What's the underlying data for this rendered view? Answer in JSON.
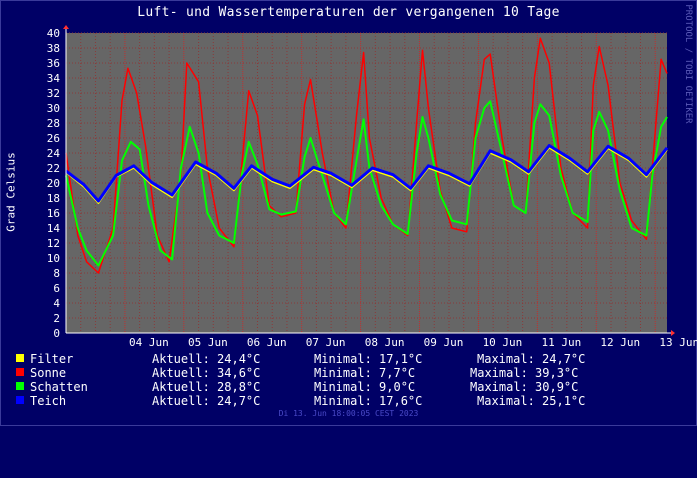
{
  "title": "Luft- und Wassertemperaturen der vergangenen 10 Tage",
  "watermark": "PROTOOL / TOBI OETIKER",
  "footer": "Di 13. Jun 18:00:05 CEST 2023",
  "colors": {
    "background": "#000066",
    "plot_bg": "#666666",
    "grid": "#8a3a3a",
    "axis": "#ffffff",
    "Filter": "#ffff00",
    "Sonne": "#ff0000",
    "Schatten": "#00ff00",
    "Teich": "#0000ff"
  },
  "legend": [
    {
      "name": "Filter",
      "current": "Aktuell: 24,4°C",
      "min": "Minimal: 17,1°C",
      "max": "Maximal: 24,7°C",
      "color": "#ffff00"
    },
    {
      "name": "Sonne",
      "current": "Aktuell: 34,6°C",
      "min": "Minimal: 7,7°C",
      "max": "Maximal: 39,3°C",
      "color": "#ff0000"
    },
    {
      "name": "Schatten",
      "current": "Aktuell: 28,8°C",
      "min": "Minimal: 9,0°C",
      "max": "Maximal: 30,9°C",
      "color": "#00ff00"
    },
    {
      "name": "Teich",
      "current": "Aktuell: 24,7°C",
      "min": "Minimal: 17,6°C",
      "max": "Maximal: 25,1°C",
      "color": "#0000ff"
    }
  ],
  "chart_data": {
    "type": "line",
    "title": "Luft- und Wassertemperaturen der vergangenen 10 Tage",
    "xlabel": "",
    "ylabel": "Grad Celsius",
    "ylim": [
      0,
      40
    ],
    "y_ticks": [
      0,
      2,
      4,
      6,
      8,
      10,
      12,
      14,
      16,
      18,
      20,
      22,
      24,
      26,
      28,
      30,
      32,
      34,
      36,
      38,
      40
    ],
    "x_range_days": [
      3.0,
      13.2
    ],
    "x_unit": "days of June 2023",
    "x_ticks": [
      {
        "day": 4,
        "label": "04 Jun"
      },
      {
        "day": 5,
        "label": "05 Jun"
      },
      {
        "day": 6,
        "label": "06 Jun"
      },
      {
        "day": 7,
        "label": "07 Jun"
      },
      {
        "day": 8,
        "label": "08 Jun"
      },
      {
        "day": 9,
        "label": "09 Jun"
      },
      {
        "day": 10,
        "label": "10 Jun"
      },
      {
        "day": 11,
        "label": "11 Jun"
      },
      {
        "day": 12,
        "label": "12 Jun"
      },
      {
        "day": 13,
        "label": "13 Jun"
      }
    ],
    "grid": true,
    "legend_position": "bottom",
    "series": [
      {
        "name": "Filter",
        "color": "#ffff00",
        "x": [
          3.0,
          3.3,
          3.55,
          3.85,
          4.15,
          4.45,
          4.8,
          5.2,
          5.55,
          5.85,
          6.15,
          6.5,
          6.8,
          7.2,
          7.5,
          7.85,
          8.2,
          8.55,
          8.85,
          9.15,
          9.5,
          9.85,
          10.2,
          10.55,
          10.85,
          11.2,
          11.55,
          11.85,
          12.2,
          12.55,
          12.85,
          13.2
        ],
        "y": [
          21.4,
          19.5,
          17.3,
          20.8,
          22.0,
          19.8,
          18.1,
          22.5,
          21.0,
          19.0,
          22.0,
          20.2,
          19.3,
          21.8,
          21.0,
          19.4,
          21.7,
          20.8,
          19.0,
          22.0,
          21.0,
          19.6,
          24.0,
          22.8,
          21.2,
          24.7,
          23.0,
          21.2,
          24.6,
          23.0,
          20.8,
          24.4
        ]
      },
      {
        "name": "Teich",
        "color": "#0000ff",
        "x": [
          3.0,
          3.3,
          3.55,
          3.85,
          4.15,
          4.45,
          4.8,
          5.2,
          5.55,
          5.85,
          6.15,
          6.5,
          6.8,
          7.2,
          7.5,
          7.85,
          8.2,
          8.55,
          8.85,
          9.15,
          9.5,
          9.85,
          10.2,
          10.55,
          10.85,
          11.2,
          11.55,
          11.85,
          12.2,
          12.55,
          12.85,
          13.2
        ],
        "y": [
          21.6,
          19.8,
          17.6,
          21.0,
          22.3,
          20.1,
          18.4,
          22.8,
          21.3,
          19.3,
          22.3,
          20.5,
          19.6,
          22.1,
          21.3,
          19.7,
          22.0,
          21.1,
          19.3,
          22.3,
          21.3,
          19.9,
          24.3,
          23.1,
          21.5,
          25.0,
          23.3,
          21.5,
          24.9,
          23.3,
          21.1,
          24.7
        ]
      },
      {
        "name": "Sonne",
        "color": "#ff0000",
        "x": [
          3.0,
          3.2,
          3.35,
          3.55,
          3.8,
          3.95,
          4.05,
          4.2,
          4.35,
          4.55,
          4.75,
          4.95,
          5.05,
          5.25,
          5.4,
          5.6,
          5.85,
          5.98,
          6.1,
          6.25,
          6.45,
          6.65,
          6.9,
          7.05,
          7.15,
          7.35,
          7.55,
          7.75,
          7.93,
          8.05,
          8.15,
          8.35,
          8.55,
          8.8,
          8.95,
          9.05,
          9.15,
          9.35,
          9.55,
          9.8,
          9.95,
          10.1,
          10.2,
          10.4,
          10.6,
          10.8,
          10.95,
          11.05,
          11.2,
          11.4,
          11.6,
          11.85,
          11.95,
          12.05,
          12.2,
          12.4,
          12.6,
          12.85,
          12.95,
          13.1,
          13.2
        ],
        "y": [
          24.0,
          13.0,
          9.5,
          8.0,
          14.0,
          31.0,
          35.3,
          32.0,
          25.0,
          13.0,
          9.5,
          21.0,
          36.0,
          33.5,
          22.0,
          14.0,
          11.5,
          22.0,
          32.3,
          29.0,
          17.0,
          15.5,
          16.0,
          30.5,
          33.8,
          24.0,
          16.0,
          14.0,
          29.0,
          37.4,
          26.0,
          18.0,
          14.5,
          13.0,
          28.0,
          37.7,
          30.0,
          19.0,
          14.0,
          13.5,
          28.0,
          36.5,
          37.2,
          26.0,
          17.0,
          16.0,
          34.0,
          39.3,
          36.0,
          22.0,
          16.0,
          14.0,
          33.0,
          38.2,
          33.0,
          20.0,
          15.0,
          12.5,
          22.0,
          36.5,
          34.6
        ]
      },
      {
        "name": "Schatten",
        "color": "#00ff00",
        "x": [
          3.0,
          3.2,
          3.35,
          3.55,
          3.8,
          3.95,
          4.1,
          4.25,
          4.4,
          4.6,
          4.8,
          4.95,
          5.1,
          5.25,
          5.4,
          5.6,
          5.85,
          5.98,
          6.1,
          6.25,
          6.45,
          6.65,
          6.9,
          7.05,
          7.15,
          7.35,
          7.55,
          7.75,
          7.93,
          8.05,
          8.15,
          8.35,
          8.55,
          8.8,
          8.95,
          9.05,
          9.15,
          9.35,
          9.55,
          9.8,
          9.95,
          10.1,
          10.2,
          10.4,
          10.6,
          10.8,
          10.95,
          11.05,
          11.2,
          11.4,
          11.6,
          11.85,
          11.95,
          12.05,
          12.2,
          12.4,
          12.6,
          12.85,
          12.95,
          13.1,
          13.2
        ],
        "y": [
          21.0,
          14.0,
          11.0,
          9.0,
          13.0,
          23.0,
          25.5,
          24.5,
          17.0,
          11.0,
          9.8,
          22.0,
          27.5,
          24.0,
          16.0,
          13.0,
          12.0,
          21.0,
          25.5,
          22.5,
          16.5,
          15.8,
          16.2,
          23.5,
          26.0,
          21.0,
          16.0,
          14.5,
          23.0,
          28.5,
          22.0,
          17.0,
          14.5,
          13.2,
          24.0,
          28.8,
          26.0,
          18.5,
          15.0,
          14.5,
          26.0,
          30.0,
          30.9,
          24.0,
          17.0,
          16.0,
          28.0,
          30.5,
          29.0,
          21.0,
          16.0,
          14.8,
          27.0,
          29.5,
          27.0,
          19.0,
          14.0,
          13.0,
          21.0,
          27.5,
          28.8
        ]
      }
    ]
  }
}
